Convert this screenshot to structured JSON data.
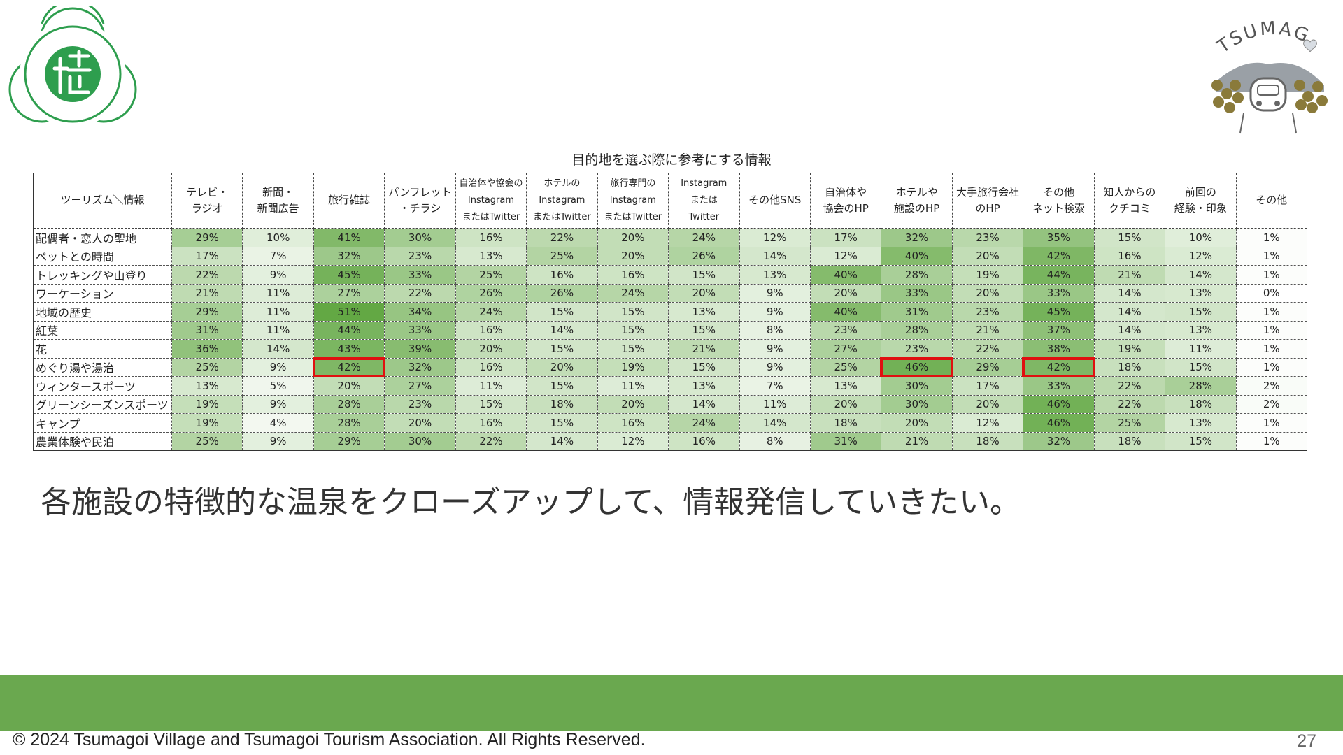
{
  "table": {
    "title": "目的地を選ぶ際に参考にする情報",
    "corner": "ツーリズム＼情報",
    "columns": [
      "テレビ・\nラジオ",
      "新聞・\n新聞広告",
      "旅行雑誌",
      "パンフレット\n・チラシ",
      "自治体や協会の\nInstagram\nまたはTwitter",
      "ホテルの\nInstagram\nまたはTwitter",
      "旅行専門の\nInstagram\nまたはTwitter",
      "Instagram\nまたは\nTwitter",
      "その他SNS",
      "自治体や\n協会のHP",
      "ホテルや\n施設のHP",
      "大手旅行会社\nのHP",
      "その他\nネット検索",
      "知人からの\nクチコミ",
      "前回の\n経験・印象",
      "その他"
    ],
    "rows": [
      {
        "label": "配偶者・恋人の聖地",
        "values": [
          "29%",
          "10%",
          "41%",
          "30%",
          "16%",
          "22%",
          "20%",
          "24%",
          "12%",
          "17%",
          "32%",
          "23%",
          "35%",
          "15%",
          "10%",
          "1%"
        ]
      },
      {
        "label": "ペットとの時間",
        "values": [
          "17%",
          "7%",
          "32%",
          "23%",
          "13%",
          "25%",
          "20%",
          "26%",
          "14%",
          "12%",
          "40%",
          "20%",
          "42%",
          "16%",
          "12%",
          "1%"
        ]
      },
      {
        "label": "トレッキングや山登り",
        "values": [
          "22%",
          "9%",
          "45%",
          "33%",
          "25%",
          "16%",
          "16%",
          "15%",
          "13%",
          "40%",
          "28%",
          "19%",
          "44%",
          "21%",
          "14%",
          "1%"
        ]
      },
      {
        "label": "ワーケーション",
        "values": [
          "21%",
          "11%",
          "27%",
          "22%",
          "26%",
          "26%",
          "24%",
          "20%",
          "9%",
          "20%",
          "33%",
          "20%",
          "33%",
          "14%",
          "13%",
          "0%"
        ]
      },
      {
        "label": "地域の歴史",
        "values": [
          "29%",
          "11%",
          "51%",
          "34%",
          "24%",
          "15%",
          "15%",
          "13%",
          "9%",
          "40%",
          "31%",
          "23%",
          "45%",
          "14%",
          "15%",
          "1%"
        ]
      },
      {
        "label": "紅葉",
        "values": [
          "31%",
          "11%",
          "44%",
          "33%",
          "16%",
          "14%",
          "15%",
          "15%",
          "8%",
          "23%",
          "28%",
          "21%",
          "37%",
          "14%",
          "13%",
          "1%"
        ]
      },
      {
        "label": "花",
        "values": [
          "36%",
          "14%",
          "43%",
          "39%",
          "20%",
          "15%",
          "15%",
          "21%",
          "9%",
          "27%",
          "23%",
          "22%",
          "38%",
          "19%",
          "11%",
          "1%"
        ]
      },
      {
        "label": "めぐり湯や湯治",
        "values": [
          "25%",
          "9%",
          "42%",
          "32%",
          "16%",
          "20%",
          "19%",
          "15%",
          "9%",
          "25%",
          "46%",
          "29%",
          "42%",
          "18%",
          "15%",
          "1%"
        ]
      },
      {
        "label": "ウィンタースポーツ",
        "values": [
          "13%",
          "5%",
          "20%",
          "27%",
          "11%",
          "15%",
          "11%",
          "13%",
          "7%",
          "13%",
          "30%",
          "17%",
          "33%",
          "22%",
          "28%",
          "2%"
        ]
      },
      {
        "label": "グリーンシーズンスポーツ",
        "values": [
          "19%",
          "9%",
          "28%",
          "23%",
          "15%",
          "18%",
          "20%",
          "14%",
          "11%",
          "20%",
          "30%",
          "20%",
          "46%",
          "22%",
          "18%",
          "2%"
        ]
      },
      {
        "label": "キャンプ",
        "values": [
          "19%",
          "4%",
          "28%",
          "20%",
          "16%",
          "15%",
          "16%",
          "24%",
          "14%",
          "18%",
          "20%",
          "12%",
          "46%",
          "25%",
          "13%",
          "1%"
        ]
      },
      {
        "label": "農業体験や民泊",
        "values": [
          "25%",
          "9%",
          "29%",
          "30%",
          "22%",
          "14%",
          "12%",
          "16%",
          "8%",
          "31%",
          "21%",
          "18%",
          "32%",
          "18%",
          "15%",
          "1%"
        ]
      }
    ],
    "highlighted": [
      {
        "row": 7,
        "col": 2
      },
      {
        "row": 7,
        "col": 10
      },
      {
        "row": 7,
        "col": 12
      }
    ],
    "scale_colors": {
      "low": "#ffffff",
      "high": "#63a844"
    }
  },
  "message": "各施設の特徴的な温泉をクローズアップして、情報発信していきたい。",
  "footer": {
    "copyright": "© 2024 Tsumagoi Village and Tsumagoi Tourism Association. All Rights Reserved.",
    "page_number": "27",
    "band_color": "#6aa84f"
  },
  "logos": {
    "left_icon": "village-emblem-icon",
    "right_icon": "tsumagoi-mascot-logo",
    "right_text": "TSUMAGOI"
  }
}
